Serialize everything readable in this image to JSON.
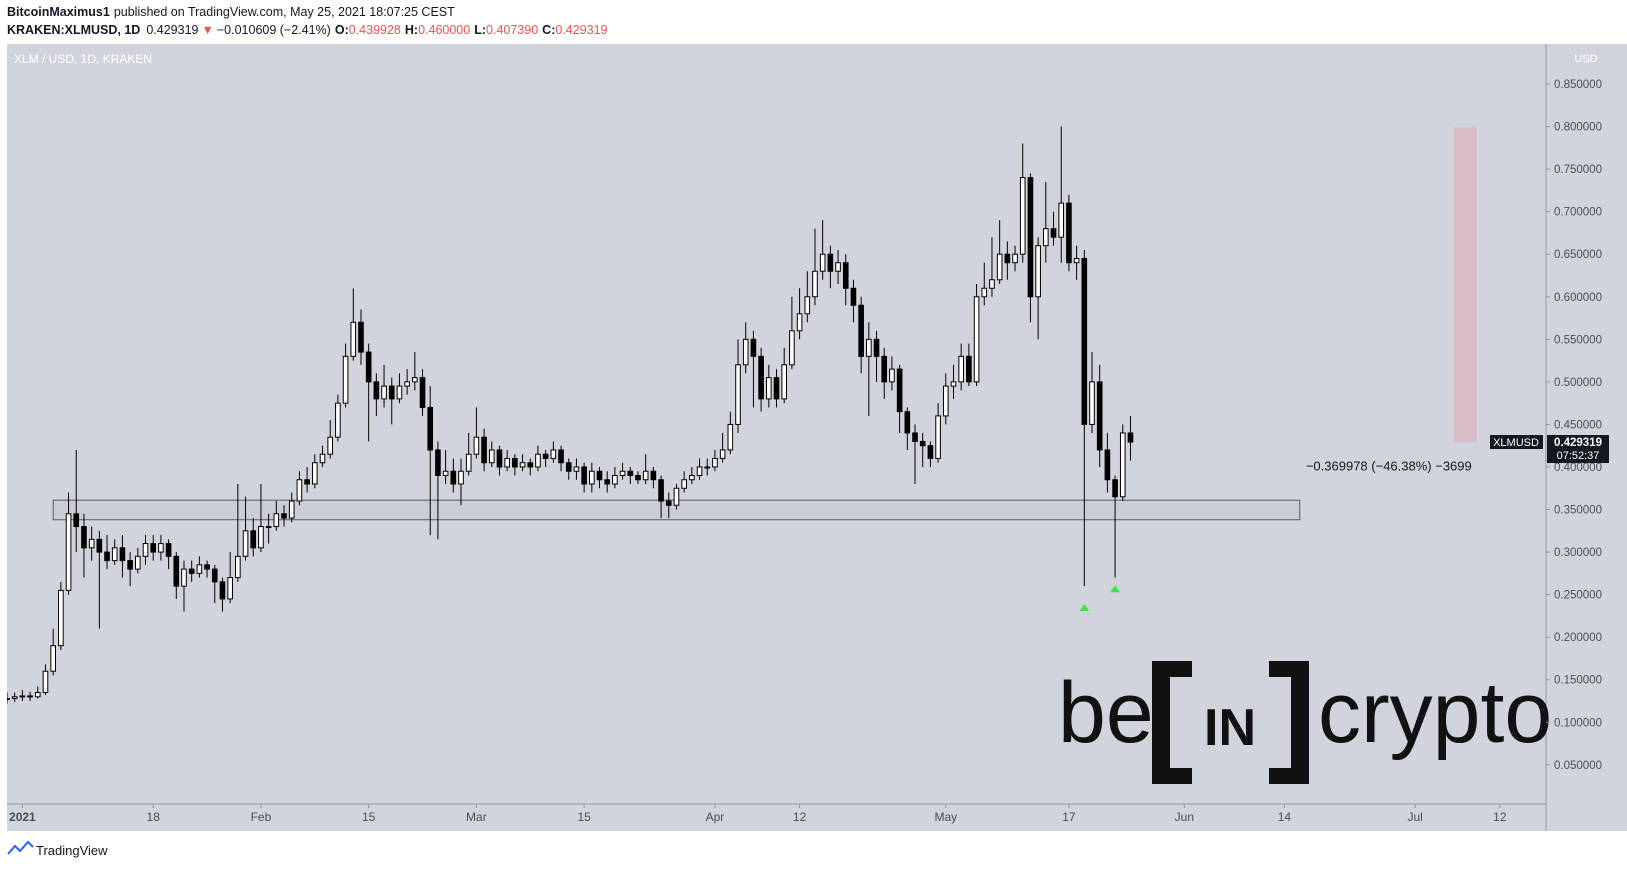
{
  "header": {
    "author": "BitcoinMaximus1",
    "published": "published on TradingView.com, May 25, 2021 18:07:25 CEST",
    "symbol": "KRAKEN:XLMUSD, 1D",
    "last": "0.429319",
    "direction": "▼",
    "change": "−0.010609 (−2.41%)",
    "ohlc": [
      {
        "label": "O:",
        "value": "0.439928"
      },
      {
        "label": "H:",
        "value": "0.460000"
      },
      {
        "label": "L:",
        "value": "0.407390"
      },
      {
        "label": "C:",
        "value": "0.429319"
      }
    ]
  },
  "chart_data": {
    "type": "candlestick",
    "title": "XLM / USD, 1D, KRAKEN",
    "y_axis_label": "USD",
    "up_color": "#ffffff",
    "down_color": "#000000",
    "x": [
      "2020-12-30",
      "2020-12-31",
      "2021-01-01",
      "2021-01-02",
      "2021-01-03",
      "2021-01-04",
      "2021-01-05",
      "2021-01-06",
      "2021-01-07",
      "2021-01-08",
      "2021-01-09",
      "2021-01-10",
      "2021-01-11",
      "2021-01-12",
      "2021-01-13",
      "2021-01-14",
      "2021-01-15",
      "2021-01-16",
      "2021-01-17",
      "2021-01-18",
      "2021-01-19",
      "2021-01-20",
      "2021-01-21",
      "2021-01-22",
      "2021-01-23",
      "2021-01-24",
      "2021-01-25",
      "2021-01-26",
      "2021-01-27",
      "2021-01-28",
      "2021-01-29",
      "2021-01-30",
      "2021-01-31",
      "2021-02-01",
      "2021-02-02",
      "2021-02-03",
      "2021-02-04",
      "2021-02-05",
      "2021-02-06",
      "2021-02-07",
      "2021-02-08",
      "2021-02-09",
      "2021-02-10",
      "2021-02-11",
      "2021-02-12",
      "2021-02-13",
      "2021-02-14",
      "2021-02-15",
      "2021-02-16",
      "2021-02-17",
      "2021-02-18",
      "2021-02-19",
      "2021-02-20",
      "2021-02-21",
      "2021-02-22",
      "2021-02-23",
      "2021-02-24",
      "2021-02-25",
      "2021-02-26",
      "2021-02-27",
      "2021-02-28",
      "2021-03-01",
      "2021-03-02",
      "2021-03-03",
      "2021-03-04",
      "2021-03-05",
      "2021-03-06",
      "2021-03-07",
      "2021-03-08",
      "2021-03-09",
      "2021-03-10",
      "2021-03-11",
      "2021-03-12",
      "2021-03-13",
      "2021-03-14",
      "2021-03-15",
      "2021-03-16",
      "2021-03-17",
      "2021-03-18",
      "2021-03-19",
      "2021-03-20",
      "2021-03-21",
      "2021-03-22",
      "2021-03-23",
      "2021-03-24",
      "2021-03-25",
      "2021-03-26",
      "2021-03-27",
      "2021-03-28",
      "2021-03-29",
      "2021-03-30",
      "2021-03-31",
      "2021-04-01",
      "2021-04-02",
      "2021-04-03",
      "2021-04-04",
      "2021-04-05",
      "2021-04-06",
      "2021-04-07",
      "2021-04-08",
      "2021-04-09",
      "2021-04-10",
      "2021-04-11",
      "2021-04-12",
      "2021-04-13",
      "2021-04-14",
      "2021-04-15",
      "2021-04-16",
      "2021-04-17",
      "2021-04-18",
      "2021-04-19",
      "2021-04-20",
      "2021-04-21",
      "2021-04-22",
      "2021-04-23",
      "2021-04-24",
      "2021-04-25",
      "2021-04-26",
      "2021-04-27",
      "2021-04-28",
      "2021-04-29",
      "2021-04-30",
      "2021-05-01",
      "2021-05-02",
      "2021-05-03",
      "2021-05-04",
      "2021-05-05",
      "2021-05-06",
      "2021-05-07",
      "2021-05-08",
      "2021-05-09",
      "2021-05-10",
      "2021-05-11",
      "2021-05-12",
      "2021-05-13",
      "2021-05-14",
      "2021-05-15",
      "2021-05-16",
      "2021-05-17",
      "2021-05-18",
      "2021-05-19",
      "2021-05-20",
      "2021-05-21",
      "2021-05-22",
      "2021-05-23",
      "2021-05-24",
      "2021-05-25"
    ],
    "open": [
      0.127,
      0.128,
      0.13,
      0.131,
      0.13,
      0.135,
      0.16,
      0.19,
      0.255,
      0.345,
      0.33,
      0.305,
      0.315,
      0.3,
      0.29,
      0.305,
      0.29,
      0.28,
      0.295,
      0.31,
      0.3,
      0.31,
      0.295,
      0.26,
      0.28,
      0.275,
      0.285,
      0.28,
      0.265,
      0.245,
      0.27,
      0.295,
      0.325,
      0.305,
      0.33,
      0.33,
      0.345,
      0.34,
      0.36,
      0.385,
      0.38,
      0.405,
      0.415,
      0.435,
      0.475,
      0.53,
      0.57,
      0.535,
      0.5,
      0.48,
      0.495,
      0.48,
      0.495,
      0.5,
      0.505,
      0.47,
      0.42,
      0.39,
      0.395,
      0.38,
      0.395,
      0.415,
      0.435,
      0.405,
      0.42,
      0.4,
      0.41,
      0.4,
      0.405,
      0.4,
      0.415,
      0.41,
      0.42,
      0.405,
      0.395,
      0.4,
      0.38,
      0.395,
      0.385,
      0.38,
      0.39,
      0.395,
      0.39,
      0.385,
      0.395,
      0.385,
      0.36,
      0.355,
      0.375,
      0.385,
      0.39,
      0.4,
      0.4,
      0.41,
      0.42,
      0.45,
      0.52,
      0.55,
      0.53,
      0.48,
      0.505,
      0.48,
      0.52,
      0.56,
      0.58,
      0.6,
      0.63,
      0.65,
      0.63,
      0.64,
      0.61,
      0.59,
      0.53,
      0.55,
      0.53,
      0.5,
      0.515,
      0.465,
      0.44,
      0.43,
      0.425,
      0.41,
      0.46,
      0.495,
      0.5,
      0.53,
      0.5,
      0.6,
      0.61,
      0.62,
      0.65,
      0.64,
      0.65,
      0.74,
      0.6,
      0.66,
      0.68,
      0.67,
      0.71,
      0.64,
      0.645,
      0.45,
      0.5,
      0.42,
      0.385,
      0.365,
      0.439928
    ],
    "high": [
      0.135,
      0.135,
      0.138,
      0.136,
      0.142,
      0.168,
      0.21,
      0.265,
      0.37,
      0.42,
      0.345,
      0.33,
      0.325,
      0.32,
      0.315,
      0.32,
      0.3,
      0.305,
      0.32,
      0.32,
      0.32,
      0.315,
      0.3,
      0.29,
      0.29,
      0.295,
      0.29,
      0.285,
      0.27,
      0.3,
      0.38,
      0.365,
      0.34,
      0.38,
      0.345,
      0.36,
      0.355,
      0.37,
      0.395,
      0.4,
      0.415,
      0.425,
      0.455,
      0.485,
      0.545,
      0.61,
      0.585,
      0.545,
      0.51,
      0.52,
      0.505,
      0.51,
      0.515,
      0.535,
      0.515,
      0.495,
      0.43,
      0.42,
      0.41,
      0.41,
      0.44,
      0.47,
      0.445,
      0.43,
      0.425,
      0.42,
      0.415,
      0.415,
      0.41,
      0.425,
      0.42,
      0.43,
      0.425,
      0.41,
      0.41,
      0.405,
      0.405,
      0.4,
      0.395,
      0.4,
      0.405,
      0.4,
      0.395,
      0.415,
      0.4,
      0.39,
      0.37,
      0.38,
      0.395,
      0.4,
      0.41,
      0.41,
      0.42,
      0.44,
      0.465,
      0.55,
      0.57,
      0.56,
      0.54,
      0.52,
      0.515,
      0.54,
      0.6,
      0.61,
      0.63,
      0.68,
      0.69,
      0.66,
      0.655,
      0.65,
      0.62,
      0.6,
      0.57,
      0.56,
      0.54,
      0.53,
      0.52,
      0.47,
      0.45,
      0.44,
      0.43,
      0.475,
      0.51,
      0.52,
      0.545,
      0.545,
      0.615,
      0.64,
      0.67,
      0.69,
      0.665,
      0.66,
      0.78,
      0.745,
      0.67,
      0.735,
      0.7,
      0.8,
      0.72,
      0.66,
      0.655,
      0.535,
      0.52,
      0.44,
      0.39,
      0.45,
      0.46
    ],
    "low": [
      0.122,
      0.124,
      0.125,
      0.125,
      0.128,
      0.132,
      0.155,
      0.185,
      0.25,
      0.3,
      0.27,
      0.29,
      0.21,
      0.28,
      0.285,
      0.27,
      0.26,
      0.275,
      0.285,
      0.29,
      0.29,
      0.28,
      0.245,
      0.23,
      0.265,
      0.27,
      0.27,
      0.24,
      0.23,
      0.24,
      0.265,
      0.29,
      0.295,
      0.3,
      0.31,
      0.325,
      0.33,
      0.335,
      0.355,
      0.37,
      0.375,
      0.4,
      0.41,
      0.43,
      0.47,
      0.525,
      0.52,
      0.43,
      0.46,
      0.47,
      0.45,
      0.475,
      0.485,
      0.49,
      0.46,
      0.32,
      0.315,
      0.38,
      0.37,
      0.355,
      0.39,
      0.41,
      0.395,
      0.4,
      0.39,
      0.395,
      0.39,
      0.395,
      0.39,
      0.395,
      0.4,
      0.405,
      0.395,
      0.385,
      0.385,
      0.37,
      0.37,
      0.375,
      0.37,
      0.375,
      0.385,
      0.38,
      0.38,
      0.38,
      0.375,
      0.34,
      0.34,
      0.35,
      0.37,
      0.38,
      0.385,
      0.39,
      0.395,
      0.405,
      0.415,
      0.44,
      0.51,
      0.47,
      0.465,
      0.47,
      0.47,
      0.475,
      0.515,
      0.55,
      0.57,
      0.59,
      0.62,
      0.61,
      0.615,
      0.59,
      0.57,
      0.51,
      0.46,
      0.5,
      0.48,
      0.49,
      0.44,
      0.42,
      0.38,
      0.4,
      0.4,
      0.405,
      0.45,
      0.48,
      0.49,
      0.495,
      0.495,
      0.59,
      0.6,
      0.615,
      0.62,
      0.63,
      0.64,
      0.57,
      0.55,
      0.64,
      0.66,
      0.64,
      0.63,
      0.62,
      0.26,
      0.44,
      0.4,
      0.37,
      0.27,
      0.36,
      0.40739
    ],
    "close": [
      0.128,
      0.13,
      0.131,
      0.13,
      0.135,
      0.16,
      0.19,
      0.255,
      0.345,
      0.33,
      0.305,
      0.315,
      0.3,
      0.29,
      0.305,
      0.29,
      0.28,
      0.295,
      0.31,
      0.3,
      0.31,
      0.295,
      0.26,
      0.28,
      0.275,
      0.285,
      0.28,
      0.265,
      0.245,
      0.27,
      0.295,
      0.325,
      0.305,
      0.33,
      0.33,
      0.345,
      0.34,
      0.36,
      0.385,
      0.38,
      0.405,
      0.415,
      0.435,
      0.475,
      0.53,
      0.57,
      0.535,
      0.5,
      0.48,
      0.495,
      0.48,
      0.495,
      0.5,
      0.505,
      0.47,
      0.42,
      0.39,
      0.395,
      0.38,
      0.395,
      0.415,
      0.435,
      0.405,
      0.42,
      0.4,
      0.41,
      0.4,
      0.405,
      0.4,
      0.415,
      0.41,
      0.42,
      0.405,
      0.395,
      0.4,
      0.38,
      0.395,
      0.385,
      0.38,
      0.39,
      0.395,
      0.39,
      0.385,
      0.395,
      0.385,
      0.36,
      0.355,
      0.375,
      0.385,
      0.39,
      0.4,
      0.4,
      0.41,
      0.42,
      0.45,
      0.52,
      0.55,
      0.53,
      0.48,
      0.505,
      0.48,
      0.52,
      0.56,
      0.58,
      0.6,
      0.63,
      0.65,
      0.63,
      0.64,
      0.61,
      0.59,
      0.53,
      0.55,
      0.53,
      0.5,
      0.515,
      0.465,
      0.44,
      0.43,
      0.425,
      0.41,
      0.46,
      0.495,
      0.5,
      0.53,
      0.5,
      0.6,
      0.61,
      0.62,
      0.65,
      0.64,
      0.65,
      0.74,
      0.6,
      0.66,
      0.68,
      0.67,
      0.71,
      0.64,
      0.645,
      0.45,
      0.5,
      0.42,
      0.385,
      0.365,
      0.44,
      0.429319
    ],
    "xlim": [
      "2020-12-30",
      "2021-07-18"
    ],
    "xticks": [
      {
        "value": "2021-01-01",
        "label": "2021"
      },
      {
        "value": "2021-01-18",
        "label": "18"
      },
      {
        "value": "2021-02-01",
        "label": "Feb"
      },
      {
        "value": "2021-02-15",
        "label": "15"
      },
      {
        "value": "2021-03-01",
        "label": "Mar"
      },
      {
        "value": "2021-03-15",
        "label": "15"
      },
      {
        "value": "2021-04-01",
        "label": "Apr"
      },
      {
        "value": "2021-04-12",
        "label": "12"
      },
      {
        "value": "2021-05-01",
        "label": "May"
      },
      {
        "value": "2021-05-17",
        "label": "17"
      },
      {
        "value": "2021-06-01",
        "label": "Jun"
      },
      {
        "value": "2021-06-14",
        "label": "14"
      },
      {
        "value": "2021-07-01",
        "label": "Jul"
      },
      {
        "value": "2021-07-12",
        "label": "12"
      }
    ],
    "ylim": [
      0.004,
      0.897
    ],
    "yticks": [
      {
        "value": 0.05,
        "label": "0.050000"
      },
      {
        "value": 0.1,
        "label": "0.100000"
      },
      {
        "value": 0.15,
        "label": "0.150000"
      },
      {
        "value": 0.2,
        "label": "0.200000"
      },
      {
        "value": 0.25,
        "label": "0.250000"
      },
      {
        "value": 0.3,
        "label": "0.300000"
      },
      {
        "value": 0.35,
        "label": "0.350000"
      },
      {
        "value": 0.4,
        "label": "0.400000"
      },
      {
        "value": 0.45,
        "label": "0.450000"
      },
      {
        "value": 0.5,
        "label": "0.500000"
      },
      {
        "value": 0.55,
        "label": "0.550000"
      },
      {
        "value": 0.6,
        "label": "0.600000"
      },
      {
        "value": 0.65,
        "label": "0.650000"
      },
      {
        "value": 0.7,
        "label": "0.700000"
      },
      {
        "value": 0.75,
        "label": "0.750000"
      },
      {
        "value": 0.8,
        "label": "0.800000"
      },
      {
        "value": 0.85,
        "label": "0.850000"
      }
    ],
    "support_zone": {
      "x": [
        "2021-01-05",
        "2021-06-16"
      ],
      "top": 0.361,
      "bottom": 0.338,
      "color": "#c6c8cf"
    },
    "measure": {
      "x": [
        "2021-07-06",
        "2021-07-09"
      ],
      "top": 0.799,
      "bottom": 0.429,
      "color": "#d8bcc6",
      "label": "−0.369978 (−46.38%) −3699"
    },
    "markers": [
      {
        "date": "2021-05-19",
        "value": 0.239
      },
      {
        "date": "2021-05-23",
        "value": 0.261
      }
    ],
    "marker_color": "#3ee83e",
    "price_tag": {
      "symbol": "XLMUSD",
      "value": 0.429319,
      "label": "0.429319",
      "countdown": "07:52:37"
    }
  },
  "watermark": {
    "left": "be",
    "middle": "IN",
    "right": "crypto"
  },
  "footer": {
    "brand": "TradingView"
  }
}
